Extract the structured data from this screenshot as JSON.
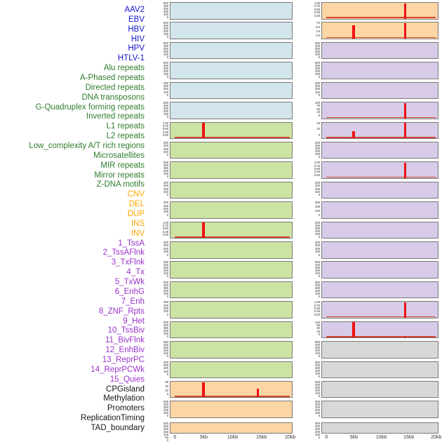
{
  "chart_data": {
    "type": "bar",
    "title": "",
    "description_visible": false,
    "x_axis_labels": [
      "0",
      "5kb",
      "10kb",
      "15kb",
      "20kb"
    ],
    "x_range_kb": [
      0,
      20
    ],
    "columns": [
      {
        "side": "left",
        "tracks": [
          {
            "name": "AAV2",
            "category": "virus",
            "yticks": [
              "500",
              "400",
              "300",
              "200",
              "100",
              "0"
            ],
            "spikes": [],
            "baseline": false
          },
          {
            "name": "EBV",
            "category": "virus",
            "yticks": [
              "500",
              "400",
              "300",
              "200",
              "100",
              "0"
            ],
            "spikes": [],
            "baseline": false
          },
          {
            "name": "HBV",
            "category": "virus",
            "yticks": [
              "500",
              "400",
              "300",
              "200",
              "100",
              "0"
            ],
            "spikes": [],
            "baseline": false
          },
          {
            "name": "HIV",
            "category": "virus",
            "yticks": [
              "500",
              "400",
              "300",
              "200",
              "100",
              "0"
            ],
            "spikes": [],
            "baseline": false
          },
          {
            "name": "HPV",
            "category": "virus",
            "yticks": [
              "400",
              "300",
              "200",
              "100",
              "0"
            ],
            "spikes": [],
            "baseline": false
          },
          {
            "name": "HTLV-1",
            "category": "virus",
            "yticks": [
              "500",
              "400",
              "300",
              "200",
              "100",
              "0"
            ],
            "spikes": [],
            "baseline": false
          },
          {
            "name": "Alu repeats",
            "category": "repeat",
            "yticks": [
              "1.00",
              "0.75",
              "0.50",
              "0.25",
              "0.00"
            ],
            "spikes": [
              {
                "x_kb": 5,
                "h": 1.0
              }
            ],
            "baseline": true
          },
          {
            "name": "A-Phased repeats",
            "category": "repeat",
            "yticks": [
              "400",
              "300",
              "200",
              "100",
              "0"
            ],
            "spikes": [],
            "baseline": false
          },
          {
            "name": "Directed repeats",
            "category": "repeat",
            "yticks": [
              "500",
              "400",
              "300",
              "200",
              "100",
              "0"
            ],
            "spikes": [],
            "baseline": false
          },
          {
            "name": "DNA transposons",
            "category": "repeat",
            "yticks": [
              "400",
              "300",
              "200",
              "100",
              "0"
            ],
            "spikes": [],
            "baseline": false
          },
          {
            "name": "G-Quadruplex forming repeats",
            "category": "repeat",
            "yticks": [
              "400",
              "300",
              "200",
              "100",
              "0"
            ],
            "spikes": [],
            "baseline": false
          },
          {
            "name": "Inverted repeats",
            "category": "repeat",
            "yticks": [
              "1.00",
              "0.75",
              "0.50",
              "0.25",
              "0.00"
            ],
            "spikes": [
              {
                "x_kb": 5,
                "h": 1.0
              }
            ],
            "baseline": true
          },
          {
            "name": "L1 repeats",
            "category": "repeat",
            "yticks": [
              "400",
              "300",
              "200",
              "100",
              "0"
            ],
            "spikes": [],
            "baseline": false
          },
          {
            "name": "L2 repeats",
            "category": "repeat",
            "yticks": [
              "500",
              "400",
              "300",
              "200",
              "100",
              "0"
            ],
            "spikes": [],
            "baseline": false
          },
          {
            "name": "Low_complexity A/T rich regions",
            "category": "repeat",
            "yticks": [
              "500",
              "400",
              "300",
              "200",
              "100",
              "0"
            ],
            "spikes": [],
            "baseline": false
          },
          {
            "name": "Microsatellites",
            "category": "repeat",
            "yticks": [
              "400",
              "300",
              "200",
              "100",
              "0"
            ],
            "spikes": [],
            "baseline": false
          },
          {
            "name": "MIR repeats",
            "category": "repeat",
            "yticks": [
              "500",
              "400",
              "300",
              "200",
              "100",
              "0"
            ],
            "spikes": [],
            "baseline": false
          },
          {
            "name": "Mirror repeats",
            "category": "repeat",
            "yticks": [
              "500",
              "400",
              "300",
              "200",
              "100",
              "0"
            ],
            "spikes": [],
            "baseline": false
          },
          {
            "name": "Z-DNA motifs",
            "category": "repeat",
            "yticks": [
              "400",
              "300",
              "200",
              "100",
              "0"
            ],
            "spikes": [],
            "baseline": false
          },
          {
            "name": "CNV",
            "category": "sv",
            "yticks": [
              "60",
              "40",
              "20",
              "0"
            ],
            "spikes": [
              {
                "x_kb": 5,
                "h": 1.0
              },
              {
                "x_kb": 14.4,
                "h": 0.55
              }
            ],
            "baseline": true
          },
          {
            "name": "DEL",
            "category": "sv",
            "yticks": [
              "500",
              "400",
              "300",
              "200",
              "100",
              "0"
            ],
            "spikes": [],
            "baseline": false
          },
          {
            "name": "DUP",
            "category": "sv",
            "yticks": [
              "300",
              "250",
              "200",
              "150",
              "100",
              "50",
              "0"
            ],
            "spikes": [],
            "baseline": false
          }
        ]
      },
      {
        "side": "right",
        "tracks": [
          {
            "name": "INS",
            "category": "sv",
            "yticks": [
              "1.00",
              "0.75",
              "0.50",
              "0.25",
              "0.00"
            ],
            "spikes": [
              {
                "x_kb": 14.4,
                "h": 1.0
              }
            ],
            "baseline": true
          },
          {
            "name": "INV",
            "category": "sv",
            "yticks": [
              "7.5",
              "5.0",
              "2.5",
              "0.0"
            ],
            "spikes": [
              {
                "x_kb": 5,
                "h": 0.85
              },
              {
                "x_kb": 14.4,
                "h": 1.0
              }
            ],
            "baseline": true
          },
          {
            "name": "1_TssA",
            "category": "chromhmm",
            "yticks": [
              "500",
              "400",
              "300",
              "200",
              "100",
              "0"
            ],
            "spikes": [],
            "baseline": false
          },
          {
            "name": "2_TssAFlnk",
            "category": "chromhmm",
            "yticks": [
              "500",
              "400",
              "300",
              "200",
              "100",
              "0"
            ],
            "spikes": [],
            "baseline": false
          },
          {
            "name": "3_TxFlnk",
            "category": "chromhmm",
            "yticks": [
              "400",
              "300",
              "200",
              "100",
              "0"
            ],
            "spikes": [],
            "baseline": false
          },
          {
            "name": "4_Tx",
            "category": "chromhmm",
            "yticks": [
              "100",
              "75",
              "50",
              "25",
              "0"
            ],
            "spikes": [
              {
                "x_kb": 14.4,
                "h": 1.0
              }
            ],
            "baseline": true
          },
          {
            "name": "5_TxWk",
            "category": "chromhmm",
            "yticks": [
              "20",
              "10",
              "0"
            ],
            "spikes": [
              {
                "x_kb": 5,
                "h": 0.48
              },
              {
                "x_kb": 14.4,
                "h": 1.0
              }
            ],
            "baseline": true
          },
          {
            "name": "6_EnhG",
            "category": "chromhmm",
            "yticks": [
              "500",
              "400",
              "300",
              "200",
              "100",
              "0"
            ],
            "spikes": [],
            "baseline": false
          },
          {
            "name": "7_Enh",
            "category": "chromhmm",
            "yticks": [
              "1.00",
              "0.75",
              "0.50",
              "0.25",
              "0.00"
            ],
            "spikes": [
              {
                "x_kb": 14.4,
                "h": 1.0
              }
            ],
            "baseline": true
          },
          {
            "name": "8_ZNF_Rpts",
            "category": "chromhmm",
            "yticks": [
              "400",
              "300",
              "200",
              "100",
              "0"
            ],
            "spikes": [],
            "baseline": false
          },
          {
            "name": "9_Het",
            "category": "chromhmm",
            "yticks": [
              "300",
              "200",
              "100",
              "0"
            ],
            "spikes": [],
            "baseline": false
          },
          {
            "name": "10_TssBiv",
            "category": "chromhmm",
            "yticks": [
              "500",
              "400",
              "300",
              "200",
              "100",
              "0"
            ],
            "spikes": [],
            "baseline": false
          },
          {
            "name": "11_BivFlnk",
            "category": "chromhmm",
            "yticks": [
              "400",
              "300",
              "200",
              "100",
              "0"
            ],
            "spikes": [],
            "baseline": false
          },
          {
            "name": "12_EnhBiv",
            "category": "chromhmm",
            "yticks": [
              "500",
              "400",
              "300",
              "200",
              "100",
              "0"
            ],
            "spikes": [],
            "baseline": false
          },
          {
            "name": "13_ReprPC",
            "category": "chromhmm",
            "yticks": [
              "500",
              "400",
              "300",
              "200",
              "100",
              "0"
            ],
            "spikes": [],
            "baseline": false
          },
          {
            "name": "14_ReprPCWk",
            "category": "chromhmm",
            "yticks": [
              "1.00",
              "0.75",
              "0.50",
              "0.25",
              "0.00"
            ],
            "spikes": [
              {
                "x_kb": 14.4,
                "h": 1.0
              }
            ],
            "baseline": true
          },
          {
            "name": "15_Quies",
            "category": "chromhmm",
            "yticks": [
              "120",
              "90",
              "60",
              "30",
              "0"
            ],
            "spikes": [
              {
                "x_kb": 5,
                "h": 1.0
              },
              {
                "x_kb": 14.4,
                "h": 0.09
              }
            ],
            "baseline": true
          },
          {
            "name": "CPGisland",
            "category": "other",
            "yticks": [
              "500",
              "400",
              "300",
              "200",
              "100",
              "0"
            ],
            "spikes": [],
            "baseline": false
          },
          {
            "name": "Methylation",
            "category": "other",
            "yticks": [
              "500",
              "400",
              "300",
              "200",
              "100",
              "0"
            ],
            "spikes": [],
            "baseline": false
          },
          {
            "name": "Promoters",
            "category": "other",
            "yticks": [
              "500",
              "400",
              "300",
              "200",
              "100",
              "0"
            ],
            "spikes": [],
            "baseline": false
          },
          {
            "name": "ReplicationTiming",
            "category": "other",
            "yticks": [
              "500",
              "400",
              "300",
              "200",
              "100",
              "0"
            ],
            "spikes": [],
            "baseline": false
          },
          {
            "name": "TAD_boundary",
            "category": "other",
            "yticks": [
              "500",
              "400",
              "300",
              "200",
              "100",
              "0"
            ],
            "spikes": [],
            "baseline": false
          }
        ]
      }
    ]
  },
  "colors": {
    "label_text": {
      "virus": "#1212cf",
      "repeat": "#2e7d2e",
      "sv": "#ffa500",
      "chromhmm": "#9932cc",
      "other": "#161616"
    },
    "panel_fill": {
      "virus": "#d2e5ec",
      "repeat": "#cce3a4",
      "sv": "#fcd5a5",
      "chromhmm": "#d7cbe7",
      "other": "#d8d8d8"
    },
    "panel_border": "#7a7a7a",
    "spike": "#ee1111",
    "baseline": "#d2452f",
    "tick_text": "#3a3a3a",
    "axis_text": "#333333"
  }
}
